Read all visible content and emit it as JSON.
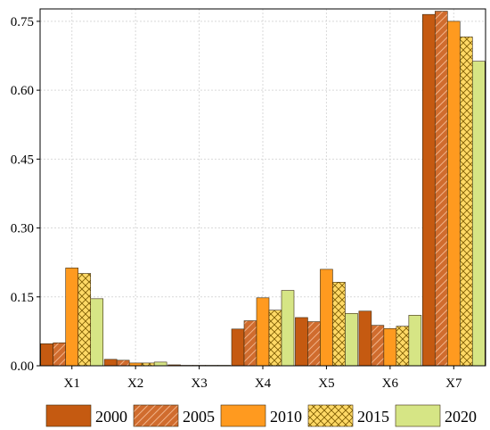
{
  "chart_data": {
    "type": "bar",
    "categories": [
      "X1",
      "X2",
      "X3",
      "X4",
      "X5",
      "X6",
      "X7"
    ],
    "ylim": [
      0,
      0.75
    ],
    "yticks": [
      "0.00",
      "0.15",
      "0.30",
      "0.45",
      "0.60",
      "0.75"
    ],
    "grid": true,
    "legend_position": "bottom",
    "series": [
      {
        "name": "2000",
        "color": "#c55a11",
        "pattern": "solid",
        "values": [
          0.048,
          0.014,
          0.002,
          0.08,
          0.105,
          0.119,
          0.765
        ]
      },
      {
        "name": "2005",
        "color": "#d06c2e",
        "pattern": "diagonal",
        "values": [
          0.05,
          0.012,
          0.001,
          0.098,
          0.096,
          0.088,
          0.772
        ]
      },
      {
        "name": "2010",
        "color": "#ff9a1f",
        "pattern": "solid",
        "values": [
          0.213,
          0.006,
          0.001,
          0.148,
          0.21,
          0.081,
          0.75
        ]
      },
      {
        "name": "2015",
        "color": "#ffd966",
        "pattern": "crosshatch",
        "values": [
          0.201,
          0.006,
          0.001,
          0.121,
          0.182,
          0.086,
          0.716
        ]
      },
      {
        "name": "2020",
        "color": "#d6e585",
        "pattern": "solid",
        "values": [
          0.146,
          0.008,
          0.001,
          0.164,
          0.114,
          0.11,
          0.663
        ]
      }
    ]
  }
}
